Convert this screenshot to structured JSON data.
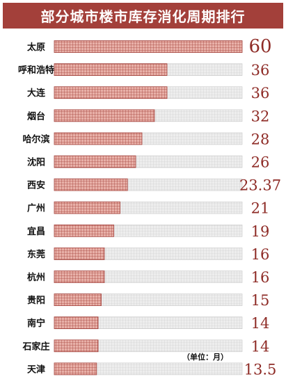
{
  "chart_data": {
    "type": "bar",
    "orientation": "horizontal",
    "title": "部分城市楼市库存消化周期排行",
    "unit_note": "（单位：月）",
    "categories": [
      "太原",
      "呼和浩特",
      "大连",
      "烟台",
      "哈尔滨",
      "沈阳",
      "西安",
      "广州",
      "宜昌",
      "东莞",
      "杭州",
      "贵阳",
      "南宁",
      "石家庄",
      "天津"
    ],
    "values": [
      60,
      36,
      36,
      32,
      28,
      26,
      23.37,
      21,
      19,
      16,
      16,
      15,
      14,
      14,
      13.5
    ],
    "value_labels": [
      "60",
      "36",
      "36",
      "32",
      "28",
      "26",
      "23.37",
      "21",
      "19",
      "16",
      "16",
      "15",
      "14",
      "14",
      "13.5"
    ],
    "xlim": [
      0,
      60
    ],
    "colors": {
      "title_bg": "#a3403a",
      "bar_fill": "#e8b0a8",
      "bar_grid": "#a3403a",
      "track_fill": "#ededed",
      "track_grid": "#c9c9c9",
      "value_text": "#8e2b26"
    }
  }
}
